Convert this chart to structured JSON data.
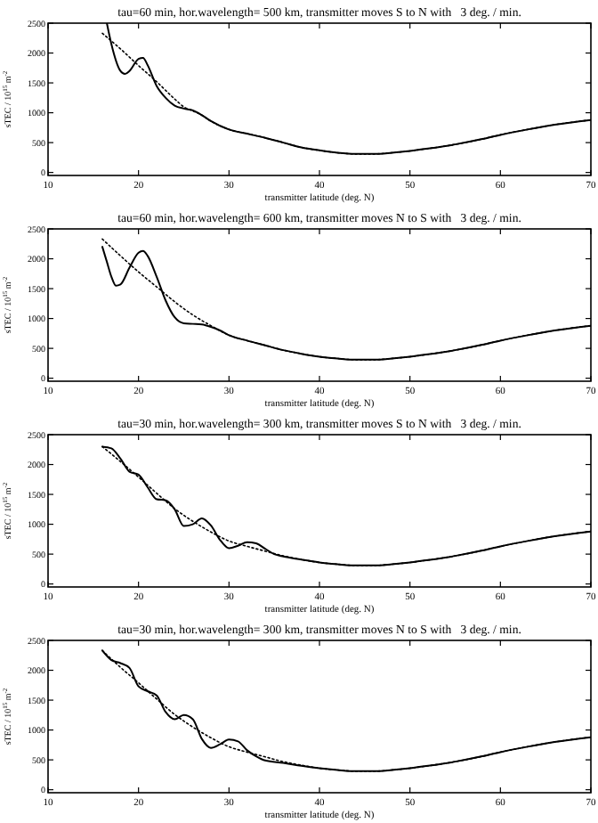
{
  "chart_data": [
    {
      "type": "line",
      "title": "tau=60 min, hor.wavelength= 500 km, transmitter moves S to N with   3 deg. / min.",
      "xlabel": "transmitter latitude (deg. N)",
      "ylabel": "sTEC / 10$^{15}$ m$^{-2}$",
      "xlim": [
        10,
        70
      ],
      "ylim": [
        -50,
        2500
      ],
      "xticks": [
        10,
        20,
        30,
        40,
        50,
        60,
        70
      ],
      "yticks": [
        0,
        500,
        1000,
        1500,
        2000,
        2500
      ],
      "grid": false,
      "marker": "none",
      "series": [
        {
          "color": "#000000",
          "line_style": "solid",
          "x": [
            16.5,
            17,
            18,
            18.5,
            19,
            20,
            20.5,
            21,
            22,
            23,
            24,
            25,
            26,
            27,
            28,
            30,
            32,
            34,
            36,
            38,
            40,
            42,
            44,
            46,
            48,
            50,
            52,
            55,
            58,
            60,
            63,
            66,
            70
          ],
          "values": [
            2500,
            2150,
            1700,
            1650,
            1700,
            1900,
            1920,
            1800,
            1450,
            1250,
            1120,
            1070,
            1040,
            960,
            860,
            720,
            650,
            580,
            500,
            420,
            370,
            330,
            310,
            310,
            330,
            360,
            400,
            470,
            560,
            630,
            720,
            800,
            880
          ]
        },
        {
          "color": "#000000",
          "line_style": "dotted",
          "x": [
            16,
            18,
            20,
            22,
            24,
            25,
            26,
            27,
            28,
            30,
            32,
            34,
            36,
            38,
            40,
            42,
            44,
            46,
            48,
            50,
            52,
            55,
            58,
            60,
            63,
            66,
            70
          ],
          "values": [
            2330,
            2070,
            1790,
            1520,
            1230,
            1100,
            1030,
            960,
            860,
            720,
            650,
            580,
            500,
            420,
            370,
            330,
            310,
            310,
            330,
            360,
            400,
            470,
            560,
            630,
            720,
            800,
            880
          ]
        }
      ]
    },
    {
      "type": "line",
      "title": "tau=60 min, hor.wavelength= 600 km, transmitter moves N to S with   3 deg. / min.",
      "xlabel": "transmitter latitude (deg. N)",
      "ylabel": "sTEC / 10$^{15}$ m$^{-2}$",
      "xlim": [
        10,
        70
      ],
      "ylim": [
        -50,
        2500
      ],
      "xticks": [
        10,
        20,
        30,
        40,
        50,
        60,
        70
      ],
      "yticks": [
        0,
        500,
        1000,
        1500,
        2000,
        2500
      ],
      "grid": false,
      "marker": "none",
      "series": [
        {
          "color": "#000000",
          "line_style": "solid",
          "x": [
            16,
            16.5,
            17,
            17.5,
            18,
            19,
            20,
            20.5,
            21,
            22,
            23,
            24,
            25,
            26,
            27,
            28,
            29,
            30,
            32,
            34,
            36,
            38,
            40,
            42,
            44,
            46,
            48,
            50,
            52,
            55,
            58,
            60,
            63,
            66,
            70
          ],
          "values": [
            2200,
            1950,
            1700,
            1550,
            1570,
            1850,
            2100,
            2130,
            2050,
            1700,
            1300,
            1020,
            920,
            910,
            900,
            860,
            800,
            720,
            630,
            550,
            470,
            410,
            360,
            330,
            310,
            310,
            330,
            360,
            400,
            470,
            560,
            630,
            720,
            800,
            880
          ]
        },
        {
          "color": "#000000",
          "line_style": "dotted",
          "x": [
            16,
            18,
            20,
            22,
            24,
            26,
            28,
            30,
            32,
            34,
            36,
            38,
            40,
            42,
            44,
            46,
            48,
            50,
            52,
            55,
            58,
            60,
            63,
            66,
            70
          ],
          "values": [
            2330,
            2050,
            1780,
            1530,
            1280,
            1060,
            880,
            720,
            630,
            550,
            470,
            410,
            360,
            330,
            310,
            310,
            330,
            360,
            400,
            470,
            560,
            630,
            720,
            800,
            880
          ]
        }
      ]
    },
    {
      "type": "line",
      "title": "tau=30 min, hor.wavelength= 300 km, transmitter moves S to N with   3 deg. / min.",
      "xlabel": "transmitter latitude (deg. N)",
      "ylabel": "sTEC / 10$^{15}$ m$^{-2}$",
      "xlim": [
        10,
        70
      ],
      "ylim": [
        -50,
        2500
      ],
      "xticks": [
        10,
        20,
        30,
        40,
        50,
        60,
        70
      ],
      "yticks": [
        0,
        500,
        1000,
        1500,
        2000,
        2500
      ],
      "grid": false,
      "marker": "none",
      "series": [
        {
          "color": "#000000",
          "line_style": "solid",
          "x": [
            16,
            17,
            18,
            19,
            20,
            21,
            22,
            23,
            24,
            25,
            26,
            27,
            28,
            29,
            30,
            31,
            32,
            33,
            34,
            35,
            36,
            38,
            40,
            42,
            44,
            46,
            48,
            50,
            52,
            55,
            58,
            60,
            63,
            66,
            70
          ],
          "values": [
            2300,
            2270,
            2100,
            1880,
            1830,
            1620,
            1420,
            1400,
            1250,
            970,
            1000,
            1100,
            980,
            740,
            600,
            640,
            700,
            680,
            590,
            500,
            460,
            410,
            360,
            330,
            310,
            310,
            330,
            360,
            400,
            470,
            560,
            630,
            720,
            800,
            880
          ]
        },
        {
          "color": "#000000",
          "line_style": "dotted",
          "x": [
            16,
            18,
            20,
            22,
            24,
            26,
            28,
            30,
            32,
            34,
            36,
            38,
            40,
            42,
            44,
            46,
            48,
            50,
            52,
            55,
            58,
            60,
            63,
            66,
            70
          ],
          "values": [
            2300,
            2050,
            1790,
            1520,
            1260,
            1050,
            870,
            720,
            630,
            550,
            470,
            410,
            360,
            330,
            310,
            310,
            330,
            360,
            400,
            470,
            560,
            630,
            720,
            800,
            880
          ]
        }
      ]
    },
    {
      "type": "line",
      "title": "tau=30 min, hor.wavelength= 300 km, transmitter moves N to S with   3 deg. / min.",
      "xlabel": "transmitter latitude (deg. N)",
      "ylabel": "sTEC / 10$^{15}$ m$^{-2}$",
      "xlim": [
        10,
        70
      ],
      "ylim": [
        -50,
        2500
      ],
      "xticks": [
        10,
        20,
        30,
        40,
        50,
        60,
        70
      ],
      "yticks": [
        0,
        500,
        1000,
        1500,
        2000,
        2500
      ],
      "grid": false,
      "marker": "none",
      "series": [
        {
          "color": "#000000",
          "line_style": "solid",
          "x": [
            16,
            17,
            18,
            19,
            20,
            21,
            22,
            23,
            24,
            25,
            26,
            27,
            28,
            29,
            30,
            31,
            32,
            33,
            34,
            36,
            38,
            40,
            42,
            44,
            46,
            48,
            50,
            52,
            55,
            58,
            60,
            63,
            66,
            70
          ],
          "values": [
            2330,
            2170,
            2120,
            2040,
            1730,
            1650,
            1580,
            1300,
            1180,
            1250,
            1180,
            850,
            700,
            760,
            840,
            810,
            660,
            560,
            490,
            450,
            400,
            360,
            330,
            310,
            310,
            330,
            360,
            400,
            470,
            560,
            630,
            720,
            800,
            880
          ]
        },
        {
          "color": "#000000",
          "line_style": "dotted",
          "x": [
            16,
            18,
            20,
            22,
            24,
            26,
            28,
            30,
            32,
            34,
            36,
            38,
            40,
            42,
            44,
            46,
            48,
            50,
            52,
            55,
            58,
            60,
            63,
            66,
            70
          ],
          "values": [
            2330,
            2050,
            1790,
            1520,
            1260,
            1050,
            870,
            720,
            630,
            550,
            470,
            410,
            360,
            330,
            310,
            310,
            330,
            360,
            400,
            470,
            560,
            630,
            720,
            800,
            880
          ]
        }
      ]
    }
  ]
}
